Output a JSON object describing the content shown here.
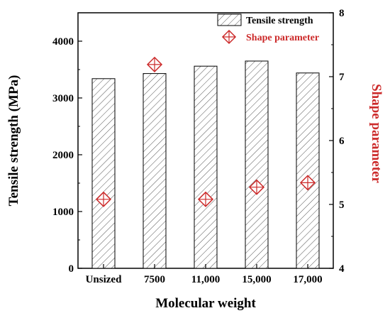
{
  "chart_data": {
    "type": "bar",
    "categories": [
      "Unsized",
      "7500",
      "11,000",
      "15,000",
      "17,000"
    ],
    "xlabel": "Molecular weight",
    "ylabel": "Tensile strength (MPa)",
    "ylabel_right": "Shape parameter",
    "ylim": [
      0,
      4500
    ],
    "ylim_right": [
      4,
      8
    ],
    "yticks": [
      "0",
      "1000",
      "2000",
      "3000",
      "4000"
    ],
    "yticks_right": [
      "4",
      "5",
      "6",
      "7",
      "8"
    ],
    "legend_position": "top-right",
    "series": [
      {
        "name": "Tensile strength",
        "type": "bar",
        "axis": "left",
        "values": [
          3340,
          3430,
          3560,
          3650,
          3440
        ],
        "style": "diagonal-hatch",
        "color": "#000000"
      },
      {
        "name": "Shape parameter",
        "type": "scatter",
        "axis": "right",
        "values": [
          5.08,
          7.19,
          5.08,
          5.27,
          5.34
        ],
        "marker": "diamond-cross",
        "color": "#cc2a2a"
      }
    ]
  }
}
